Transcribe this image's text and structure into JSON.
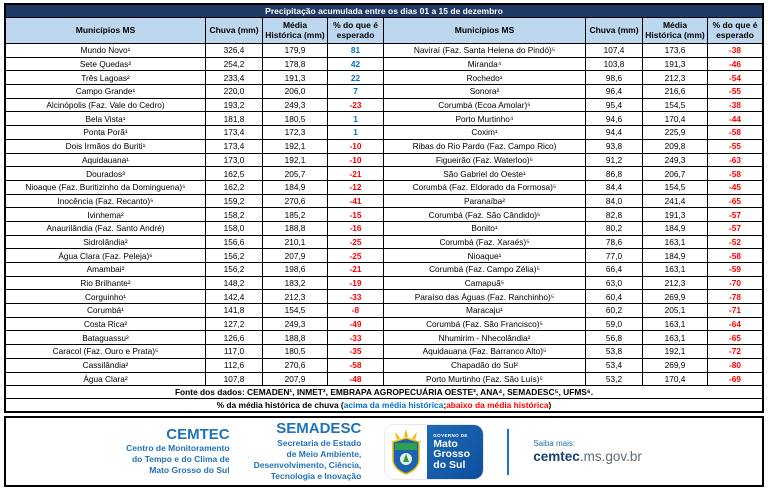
{
  "title": "Precipitação acumulada entre os dias 01 a 15 de dezembro",
  "table": {
    "headers": {
      "municipality": "Municípios MS",
      "rain": "Chuva (mm)",
      "avg": "Média Histórica (mm)",
      "pct": "% do que é esperado"
    },
    "left_rows": [
      {
        "name": "Mundo Novo¹",
        "rain": "326,4",
        "avg": "179,9",
        "pct": "81"
      },
      {
        "name": "Sete Quedas²",
        "rain": "254,2",
        "avg": "178,8",
        "pct": "42"
      },
      {
        "name": "Três Lagoas²",
        "rain": "233,4",
        "avg": "191,3",
        "pct": "22"
      },
      {
        "name": "Campo Grande¹",
        "rain": "220,0",
        "avg": "206,0",
        "pct": "7"
      },
      {
        "name": "Alcinópolis (Faz. Vale do Cedro)",
        "rain": "193,2",
        "avg": "249,3",
        "pct": "-23"
      },
      {
        "name": "Bela Vista¹",
        "rain": "181,8",
        "avg": "180,5",
        "pct": "1"
      },
      {
        "name": "Ponta Porã¹",
        "rain": "173,4",
        "avg": "172,3",
        "pct": "1"
      },
      {
        "name": "Dois Irmãos do Buriti¹",
        "rain": "173,4",
        "avg": "192,1",
        "pct": "-10"
      },
      {
        "name": "Aquidauana¹",
        "rain": "173,0",
        "avg": "192,1",
        "pct": "-10"
      },
      {
        "name": "Dourados³",
        "rain": "162,5",
        "avg": "205,7",
        "pct": "-21"
      },
      {
        "name": "Nioaque (Faz. Buritizinho da Dominguena)⁵",
        "rain": "162,2",
        "avg": "184,9",
        "pct": "-12"
      },
      {
        "name": "Inocência (Faz. Recanto)⁵",
        "rain": "159,2",
        "avg": "270,6",
        "pct": "-41"
      },
      {
        "name": "Ivinhema²",
        "rain": "158,2",
        "avg": "185,2",
        "pct": "-15"
      },
      {
        "name": "Anaurilândia (Faz. Santo André)",
        "rain": "158,0",
        "avg": "188,8",
        "pct": "-16"
      },
      {
        "name": "Sidrolândia²",
        "rain": "156,6",
        "avg": "210,1",
        "pct": "-25"
      },
      {
        "name": "Água Clara (Faz. Peleja)⁶",
        "rain": "156,2",
        "avg": "207,9",
        "pct": "-25"
      },
      {
        "name": "Amambai²",
        "rain": "156,2",
        "avg": "198,6",
        "pct": "-21"
      },
      {
        "name": "Rio Brilhante²",
        "rain": "148,2",
        "avg": "183,2",
        "pct": "-19"
      },
      {
        "name": "Corguinho¹",
        "rain": "142,4",
        "avg": "212,3",
        "pct": "-33"
      },
      {
        "name": "Corumbá¹",
        "rain": "141,8",
        "avg": "154,5",
        "pct": "-8"
      },
      {
        "name": "Costa Rica²",
        "rain": "127,2",
        "avg": "249,3",
        "pct": "-49"
      },
      {
        "name": "Bataguassu²",
        "rain": "126,6",
        "avg": "188,8",
        "pct": "-33"
      },
      {
        "name": "Caracol (Faz. Ouro e Prata)⁵",
        "rain": "117,0",
        "avg": "180,5",
        "pct": "-35"
      },
      {
        "name": "Cassilândia²",
        "rain": "112,6",
        "avg": "270,6",
        "pct": "-58"
      },
      {
        "name": "Água Clara²",
        "rain": "107,8",
        "avg": "207,9",
        "pct": "-48"
      }
    ],
    "right_rows": [
      {
        "name": "Naviraí (Faz. Santa Helena do Pindó)⁵",
        "rain": "107,4",
        "avg": "173,6",
        "pct": "-38"
      },
      {
        "name": "Miranda⁴",
        "rain": "103,8",
        "avg": "191,3",
        "pct": "-46"
      },
      {
        "name": "Rochedo¹",
        "rain": "98,6",
        "avg": "212,3",
        "pct": "-54"
      },
      {
        "name": "Sonora²",
        "rain": "96,4",
        "avg": "216,6",
        "pct": "-55"
      },
      {
        "name": "Corumbá (Ecoa Amolar)⁵",
        "rain": "95,4",
        "avg": "154,5",
        "pct": "-38"
      },
      {
        "name": "Porto Murtinho⁴",
        "rain": "94,6",
        "avg": "170,4",
        "pct": "-44"
      },
      {
        "name": "Coxim¹",
        "rain": "94,4",
        "avg": "225,9",
        "pct": "-58"
      },
      {
        "name": "Ribas do Rio Pardo (Faz. Campo Rico)",
        "rain": "93,8",
        "avg": "209,8",
        "pct": "-55"
      },
      {
        "name": "Figueirão (Faz. Waterloo)⁵",
        "rain": "91,2",
        "avg": "249,3",
        "pct": "-63"
      },
      {
        "name": "São Gabriel do Oeste¹",
        "rain": "86,8",
        "avg": "206,7",
        "pct": "-58"
      },
      {
        "name": "Corumbá (Faz. Eldorado da Formosa)⁵",
        "rain": "84,4",
        "avg": "154,5",
        "pct": "-45"
      },
      {
        "name": "Paranaíba²",
        "rain": "84,0",
        "avg": "241,4",
        "pct": "-65"
      },
      {
        "name": "Corumbá (Faz. São Cândido)⁵",
        "rain": "82,8",
        "avg": "191,3",
        "pct": "-57"
      },
      {
        "name": "Bonito¹",
        "rain": "80,2",
        "avg": "184,9",
        "pct": "-57"
      },
      {
        "name": "Corumbá (Faz. Xaraés)⁵",
        "rain": "78,6",
        "avg": "163,1",
        "pct": "-52"
      },
      {
        "name": "Nioaque¹",
        "rain": "77,0",
        "avg": "184,9",
        "pct": "-58"
      },
      {
        "name": "Corumbá (Faz. Campo Zélia)⁵",
        "rain": "66,4",
        "avg": "163,1",
        "pct": "-59"
      },
      {
        "name": "Camapuã⁵",
        "rain": "63,0",
        "avg": "212,3",
        "pct": "-70"
      },
      {
        "name": "Paraíso das Águas (Faz. Ranchinho)⁵",
        "rain": "60,4",
        "avg": "269,9",
        "pct": "-78"
      },
      {
        "name": "Maracaju¹",
        "rain": "60,2",
        "avg": "205,1",
        "pct": "-71"
      },
      {
        "name": "Corumbá (Faz. São Francisco)⁵",
        "rain": "59,0",
        "avg": "163,1",
        "pct": "-64"
      },
      {
        "name": "Nhumirim - Nhecolândia²",
        "rain": "56,8",
        "avg": "163,1",
        "pct": "-65"
      },
      {
        "name": "Aquidauana (Faz. Barranco Alto)⁵",
        "rain": "53,8",
        "avg": "192,1",
        "pct": "-72"
      },
      {
        "name": "Chapadão do Sul²",
        "rain": "53,4",
        "avg": "269,9",
        "pct": "-80"
      },
      {
        "name": "Porto Murtinho (Faz. São Luís)⁵",
        "rain": "53,2",
        "avg": "170,4",
        "pct": "-69"
      }
    ]
  },
  "footer": {
    "source_text": "Fonte dos dados:  CEMADEN¹, INMET², EMBRAPA AGROPECUÁRIA OESTE³, ANA⁴, SEMADESC⁵, UFMS⁶.",
    "legend_prefix": "% da média histórica de chuva (",
    "legend_above": "acima da média histórica",
    "legend_sep": "; ",
    "legend_below": "abaixo da média histórica",
    "legend_suffix": ")"
  },
  "branding": {
    "cemtec": {
      "name": "CEMTEC",
      "lines": [
        "Centro de Monitoramento",
        "do Tempo e do Clima de",
        "Mato Grosso do Sul"
      ]
    },
    "semadesc": {
      "name": "SEMADESC",
      "lines": [
        "Secretaria de Estado",
        "de Meio Ambiente,",
        "Desenvolvimento, Ciência,",
        "Tecnologia e Inovação"
      ]
    },
    "governo_logo": {
      "top": "GOVERNO DE",
      "lines": [
        "Mato",
        "Grosso",
        "do Sul"
      ]
    },
    "saiba_mais_label": "Saiba mais:",
    "url_bold": "cemtec",
    "url_rest": ".ms.gov.br"
  },
  "colors": {
    "title_bar": "#1f3864",
    "header_bg": "#bdd7ee",
    "positive_pct": "#0070c0",
    "negative_pct": "#ff0000",
    "brand_blue": "#2173b8"
  }
}
